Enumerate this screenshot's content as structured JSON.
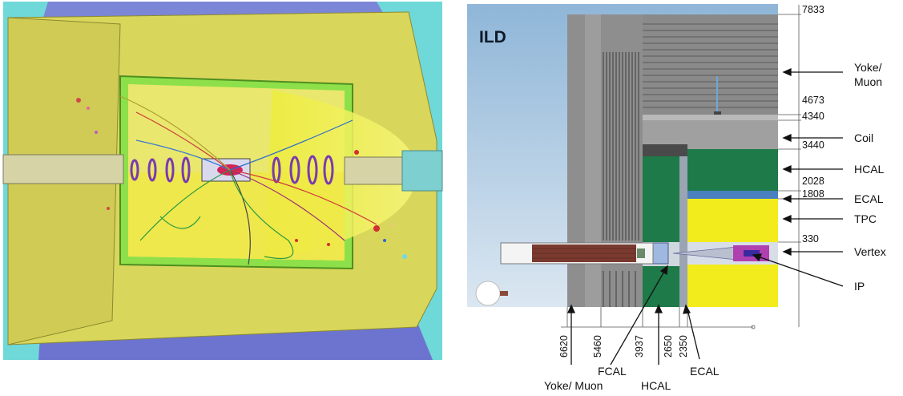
{
  "figure": {
    "left_panel": {
      "caption": ""
    },
    "right_panel": {
      "title": "ILD",
      "right_labels": {
        "yoke_muon": [
          "Yoke/",
          "Muon"
        ],
        "coil": "Coil",
        "hcal": "HCAL",
        "ecal": "ECAL",
        "tpc": "TPC",
        "vertex": "Vertex",
        "ip": "IP"
      },
      "radial_dimensions": {
        "r7833": "7833",
        "r4673": "4673",
        "r4340": "4340",
        "r3440": "3440",
        "r2028": "2028",
        "r1808": "1808",
        "r330": "330"
      },
      "axial_dimensions": {
        "z6620": "6620",
        "z5460": "5460",
        "z3937": "3937",
        "z2650": "2650",
        "z2350": "2350"
      },
      "bottom_labels": {
        "fcal": "FCAL",
        "ecal": "ECAL",
        "yoke_muon": "Yoke/ Muon",
        "hcal": "HCAL"
      }
    },
    "colors": {
      "sky": "#a9c7e2",
      "yoke": "#8e8e8e",
      "hcal_green": "#1e7a48",
      "ecal_blue": "#4a7fc0",
      "tpc_yellow": "#f2ec1c",
      "vertex_magenta": "#b040b0",
      "event_yellow": "#d8d24a",
      "event_green": "#8ee04a",
      "event_cyan": "#6fd8d8"
    }
  }
}
